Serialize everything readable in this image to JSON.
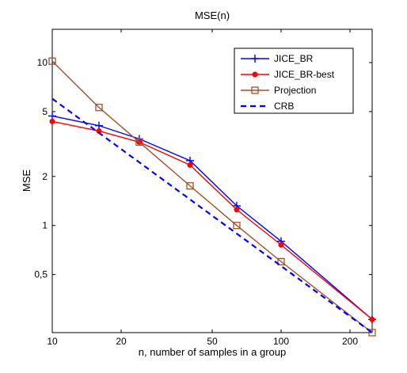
{
  "chart_data": {
    "type": "line",
    "title": "MSE(n)",
    "xlabel": "n, number of samples in a group",
    "ylabel": "MSE",
    "xscale": "log",
    "yscale": "log",
    "xlim": [
      10,
      250
    ],
    "ylim": [
      0.22,
      16
    ],
    "xticks": [
      10,
      20,
      50,
      100,
      200
    ],
    "xtick_labels": [
      "10",
      "20",
      "50",
      "100",
      "200"
    ],
    "yticks": [
      0.5,
      1,
      2,
      5,
      10
    ],
    "ytick_labels": [
      "0,5",
      "1",
      "2",
      "5",
      "10"
    ],
    "grid": false,
    "legend_position": "top-right",
    "series": [
      {
        "name": "JICE_BR",
        "color": "#0000ff",
        "line": "solid",
        "marker": "plus",
        "x": [
          10,
          16,
          24,
          40,
          64,
          100,
          250
        ],
        "y": [
          4.7,
          4.1,
          3.4,
          2.5,
          1.32,
          0.8,
          0.265
        ]
      },
      {
        "name": "JICE_BR-best",
        "color": "#ff0000",
        "line": "solid",
        "marker": "dot",
        "x": [
          10,
          16,
          24,
          40,
          64,
          100,
          250
        ],
        "y": [
          4.35,
          3.8,
          3.25,
          2.35,
          1.25,
          0.76,
          0.265
        ]
      },
      {
        "name": "Projection",
        "color": "#a0522d",
        "line": "solid",
        "marker": "square",
        "x": [
          10,
          16,
          24,
          40,
          64,
          100,
          250
        ],
        "y": [
          10.2,
          5.3,
          3.25,
          1.75,
          1.0,
          0.6,
          0.22
        ]
      },
      {
        "name": "CRB",
        "color": "#0000ff",
        "line": "dashed",
        "marker": "none",
        "x": [
          10,
          250
        ],
        "y": [
          6.0,
          0.22
        ]
      }
    ]
  }
}
